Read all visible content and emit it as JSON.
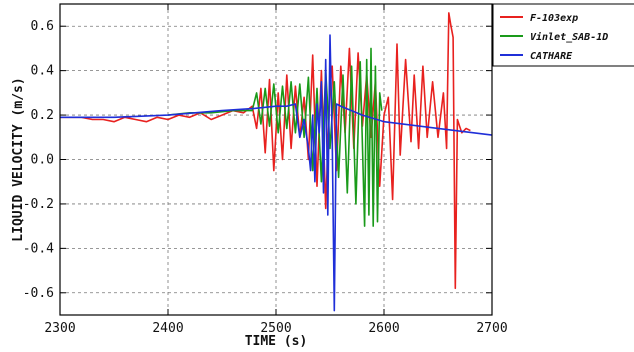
{
  "chart_data": {
    "type": "line",
    "xlabel": "TIME (s)",
    "ylabel": "LIQUID VELOCITY (m/s)",
    "xlim": [
      2300,
      2700
    ],
    "ylim": [
      -0.7,
      0.7
    ],
    "x_ticks": [
      2300,
      2400,
      2500,
      2600,
      2700
    ],
    "y_ticks": [
      -0.6,
      -0.4,
      -0.2,
      0.0,
      0.2,
      0.4,
      0.6
    ],
    "x_tick_labels": [
      "2300",
      "2400",
      "2500",
      "2600",
      "2700"
    ],
    "y_tick_labels": [
      "-0.6",
      "-0.4",
      "-0.2",
      "0.0",
      "0.2",
      "0.4",
      "0.6"
    ],
    "grid": true,
    "legend_position": "top-right outside",
    "series": [
      {
        "name": "F-103exp",
        "color": "#e8211f",
        "x": [
          2300,
          2320,
          2330,
          2340,
          2350,
          2360,
          2370,
          2380,
          2390,
          2400,
          2410,
          2420,
          2430,
          2440,
          2450,
          2460,
          2470,
          2478,
          2482,
          2486,
          2490,
          2494,
          2498,
          2502,
          2506,
          2510,
          2514,
          2518,
          2522,
          2526,
          2530,
          2534,
          2538,
          2542,
          2546,
          2550,
          2552,
          2556,
          2560,
          2564,
          2568,
          2572,
          2576,
          2580,
          2584,
          2588,
          2592,
          2596,
          2600,
          2604,
          2608,
          2612,
          2615,
          2620,
          2625,
          2628,
          2632,
          2636,
          2640,
          2645,
          2650,
          2655,
          2658,
          2660,
          2662,
          2664,
          2666,
          2668,
          2670,
          2672,
          2676,
          2680
        ],
        "y": [
          0.19,
          0.19,
          0.18,
          0.18,
          0.17,
          0.19,
          0.18,
          0.17,
          0.19,
          0.18,
          0.2,
          0.19,
          0.21,
          0.18,
          0.2,
          0.22,
          0.21,
          0.24,
          0.14,
          0.32,
          0.03,
          0.36,
          -0.05,
          0.3,
          0.0,
          0.38,
          0.05,
          0.33,
          0.1,
          0.28,
          0.0,
          0.47,
          -0.12,
          0.4,
          -0.22,
          0.33,
          0.42,
          -0.05,
          0.42,
          0.12,
          0.5,
          0.05,
          0.48,
          0.15,
          0.38,
          0.1,
          0.35,
          -0.12,
          0.2,
          0.28,
          -0.18,
          0.52,
          0.02,
          0.45,
          0.08,
          0.38,
          0.05,
          0.42,
          0.1,
          0.35,
          0.1,
          0.3,
          0.05,
          0.66,
          0.6,
          0.55,
          -0.58,
          0.18,
          0.15,
          0.12,
          0.14,
          0.13
        ]
      },
      {
        "name": "Vinlet_SAB-1D",
        "color": "#1a9a1a",
        "x": [
          2400,
          2420,
          2440,
          2460,
          2478,
          2482,
          2486,
          2490,
          2494,
          2498,
          2502,
          2506,
          2510,
          2514,
          2518,
          2522,
          2526,
          2530,
          2534,
          2538,
          2542,
          2546,
          2550,
          2554,
          2558,
          2562,
          2566,
          2570,
          2574,
          2578,
          2582,
          2584,
          2586,
          2588,
          2590,
          2592,
          2594,
          2596,
          2598
        ],
        "y": [
          0.2,
          0.21,
          0.21,
          0.22,
          0.22,
          0.3,
          0.16,
          0.32,
          0.15,
          0.34,
          0.12,
          0.33,
          0.14,
          0.35,
          0.12,
          0.34,
          0.1,
          0.37,
          -0.05,
          0.32,
          -0.1,
          0.4,
          0.05,
          0.35,
          -0.08,
          0.38,
          -0.15,
          0.42,
          -0.2,
          0.44,
          -0.3,
          0.45,
          -0.25,
          0.5,
          -0.3,
          0.42,
          -0.28,
          0.3,
          0.22
        ]
      },
      {
        "name": "CATHARE",
        "color": "#1f2fd8",
        "x": [
          2300,
          2350,
          2400,
          2450,
          2480,
          2500,
          2510,
          2518,
          2522,
          2526,
          2530,
          2532,
          2534,
          2536,
          2538,
          2540,
          2542,
          2544,
          2546,
          2548,
          2550,
          2552,
          2554,
          2556,
          2560,
          2580,
          2600,
          2650,
          2700
        ],
        "y": [
          0.19,
          0.19,
          0.2,
          0.22,
          0.23,
          0.24,
          0.24,
          0.25,
          0.1,
          0.18,
          0.05,
          -0.05,
          0.2,
          -0.1,
          0.25,
          0.12,
          0.35,
          -0.15,
          0.45,
          -0.25,
          0.56,
          0.1,
          -0.68,
          0.25,
          0.24,
          0.2,
          0.17,
          0.14,
          0.11
        ]
      }
    ]
  }
}
